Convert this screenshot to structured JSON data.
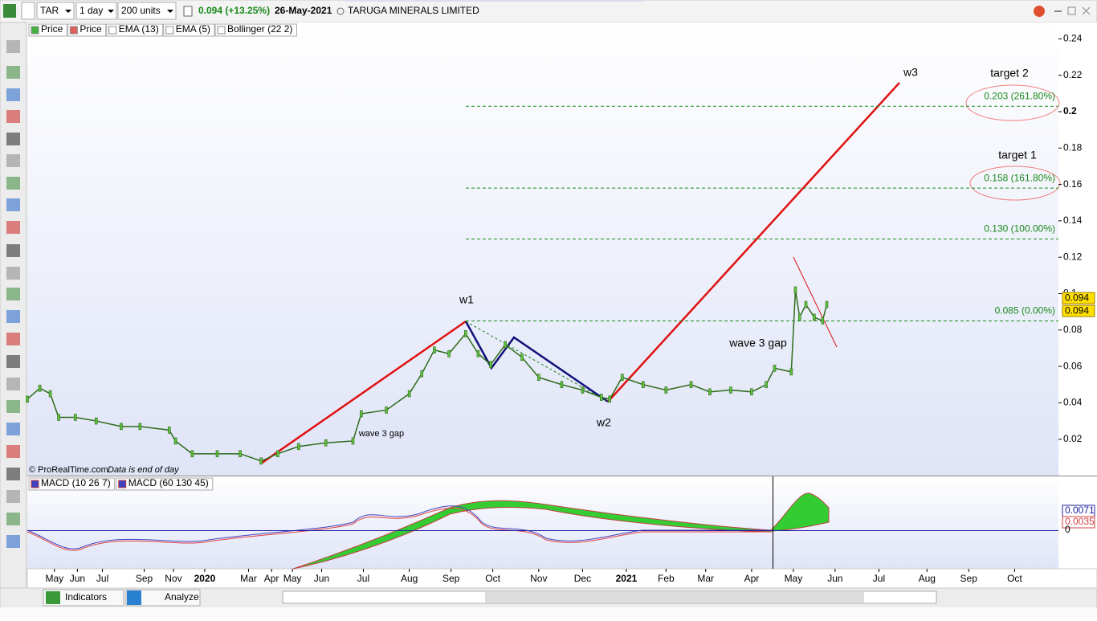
{
  "toolbar": {
    "symbol": "TAR",
    "period": "1 day",
    "units": "200 units",
    "change": "0.094 (+13.25%)",
    "date": "26-May-2021",
    "name": "TARUGA MINERALS LIMITED"
  },
  "indicators": [
    "Price",
    "Price",
    "EMA (13)",
    "EMA (5)",
    "Bollinger (22 2)"
  ],
  "chart_data": {
    "type": "line",
    "x": [
      0,
      6,
      11,
      15,
      23,
      33,
      45,
      54,
      68,
      71,
      79,
      91,
      102,
      112,
      120,
      130,
      143,
      156,
      160,
      172,
      183,
      189,
      195,
      202,
      210,
      216,
      222,
      229,
      237,
      245,
      256,
      266,
      275,
      279,
      285,
      295,
      306,
      318,
      327,
      337,
      347,
      354,
      358,
      366,
      368,
      370,
      373,
      377,
      381,
      383
    ],
    "series": [
      {
        "color": "#2e6b1a",
        "values": [
          0.042,
          0.048,
          0.045,
          0.032,
          0.032,
          0.03,
          0.027,
          0.027,
          0.025,
          0.019,
          0.012,
          0.012,
          0.012,
          0.008,
          0.012,
          0.016,
          0.018,
          0.019,
          0.034,
          0.036,
          0.045,
          0.056,
          0.069,
          0.067,
          0.078,
          0.067,
          0.061,
          0.072,
          0.065,
          0.054,
          0.05,
          0.047,
          0.043,
          0.042,
          0.054,
          0.05,
          0.047,
          0.05,
          0.046,
          0.047,
          0.046,
          0.05,
          0.059,
          0.057,
          0.102,
          0.087,
          0.094,
          0.087,
          0.085,
          0.094
        ]
      }
    ],
    "xlim": [
      0,
      494
    ],
    "xticks": [
      {
        "value": 13,
        "label": "May"
      },
      {
        "value": 24,
        "label": "Jun"
      },
      {
        "value": 36,
        "label": "Jul"
      },
      {
        "value": 56,
        "label": "Sep"
      },
      {
        "value": 70,
        "label": "Nov"
      },
      {
        "value": 85,
        "label": "2020"
      },
      {
        "value": 106,
        "label": "Mar"
      },
      {
        "value": 117,
        "label": "Apr"
      },
      {
        "value": 127,
        "label": "May"
      },
      {
        "value": 141,
        "label": "Jun"
      },
      {
        "value": 161,
        "label": "Jul"
      },
      {
        "value": 183,
        "label": "Aug"
      },
      {
        "value": 203,
        "label": "Sep"
      },
      {
        "value": 223,
        "label": "Oct"
      },
      {
        "value": 245,
        "label": "Nov"
      },
      {
        "value": 266,
        "label": "Dec"
      },
      {
        "value": 287,
        "label": "2021"
      },
      {
        "value": 306,
        "label": "Feb"
      },
      {
        "value": 325,
        "label": "Mar"
      },
      {
        "value": 347,
        "label": "Apr"
      },
      {
        "value": 367,
        "label": "May"
      },
      {
        "value": 387,
        "label": "Jun"
      },
      {
        "value": 408,
        "label": "Jul"
      },
      {
        "value": 431,
        "label": "Aug"
      },
      {
        "value": 451,
        "label": "Sep"
      },
      {
        "value": 473,
        "label": "Oct"
      }
    ],
    "ylim": [
      0,
      0.249
    ],
    "yticks": [
      0.02,
      0.04,
      0.06,
      0.08,
      0.1,
      0.12,
      0.14,
      0.16,
      0.18,
      0.2,
      0.22,
      0.24
    ],
    "levels": [
      {
        "value": 0.085,
        "label": "0.085 (0.00%)"
      },
      {
        "value": 0.13,
        "label": "0.130 (100.00%)"
      },
      {
        "value": 0.158,
        "label": "0.158 (161.80%)"
      },
      {
        "value": 0.203,
        "label": "0.203 (261.80%)"
      }
    ],
    "last_price": [
      0.094,
      0.094
    ]
  },
  "annotations": [
    "w1",
    "w2",
    "w3",
    "wave 3 gap",
    "wave 3 gap",
    "target 1",
    "target 2"
  ],
  "watermark": "© ProRealTime.com",
  "note": "Data is end of day",
  "macd": {
    "indicators": [
      "MACD (10 26 7)",
      "MACD (60 130 45)"
    ],
    "labels": [
      "0.0071",
      "0.0035",
      "0"
    ]
  },
  "bottom": {
    "indicators": "Indicators",
    "analyze": "Analyze"
  }
}
